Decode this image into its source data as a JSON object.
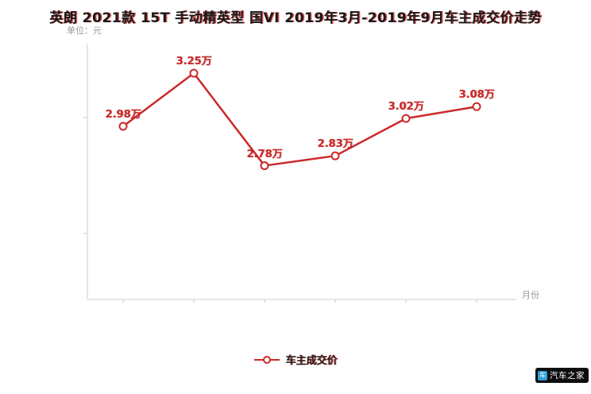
{
  "title": "英朗 2021款 15T 手动精英型 国VI 2019年3月-2019年9月车主成交价走势",
  "unit_label": "单位：元",
  "x_axis_label": "月份",
  "legend": {
    "label": "车主成交价"
  },
  "watermark": {
    "text": "汽车之家",
    "logo_glyph": "车"
  },
  "colors": {
    "line": "#cc2929",
    "point_fill": "#ffffff",
    "axis": "#cccccc",
    "label_text": "#cc2929",
    "muted_text": "#999999",
    "watermark_bg": "#0d0d0d",
    "logo_blue": "#2f9fd8"
  },
  "chart_data": {
    "type": "line",
    "title": "英朗 2021款 15T 手动精英型 国VI 2019年3月-2019年9月车主成交价走势",
    "xlabel": "月份",
    "ylabel": "单位：元",
    "x_tick_labels_visible": false,
    "y_tick_labels_visible": false,
    "grid": false,
    "legend_position": "bottom",
    "ylim": [
      2.1,
      3.4
    ],
    "series": [
      {
        "name": "车主成交价",
        "values": [
          2.98,
          3.25,
          2.78,
          2.83,
          3.02,
          3.08
        ],
        "point_labels": [
          "2.98万",
          "3.25万",
          "2.78万",
          "2.83万",
          "3.02万",
          "3.08万"
        ]
      }
    ]
  }
}
